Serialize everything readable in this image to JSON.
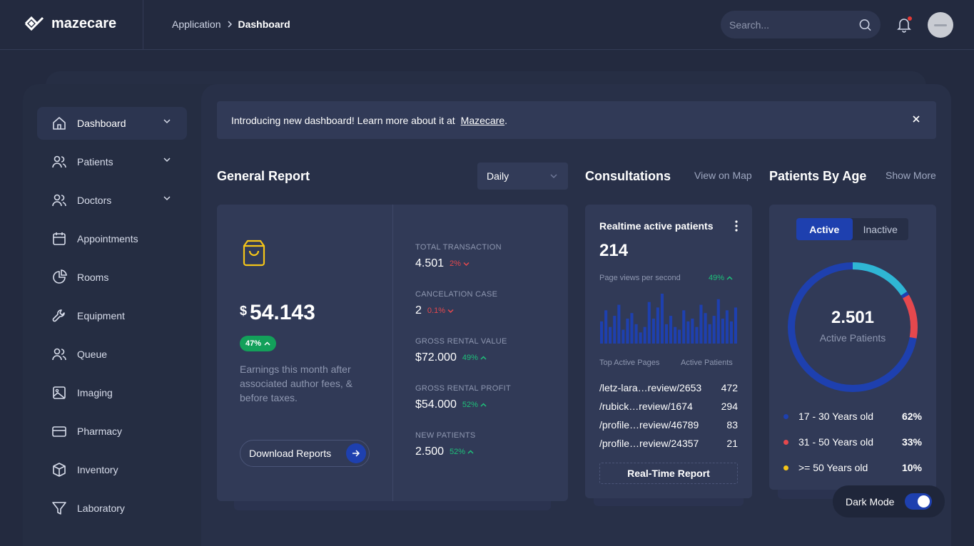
{
  "app": {
    "name": "mazecare"
  },
  "breadcrumb": {
    "parent": "Application",
    "current": "Dashboard"
  },
  "search": {
    "placeholder": "Search..."
  },
  "sidebar": {
    "items": [
      {
        "label": "Dashboard",
        "icon": "home-icon",
        "active": true,
        "expandable": true
      },
      {
        "label": "Patients",
        "icon": "users-icon",
        "expandable": true
      },
      {
        "label": "Doctors",
        "icon": "users-icon",
        "expandable": true
      },
      {
        "label": "Appointments",
        "icon": "calendar-icon"
      },
      {
        "label": "Rooms",
        "icon": "pie-icon"
      },
      {
        "label": "Equipment",
        "icon": "wrench-icon"
      },
      {
        "label": "Queue",
        "icon": "users-icon"
      },
      {
        "label": "Imaging",
        "icon": "image-icon"
      },
      {
        "label": "Pharmacy",
        "icon": "credit-card-icon"
      },
      {
        "label": "Inventory",
        "icon": "box-icon"
      },
      {
        "label": "Laboratory",
        "icon": "filter-icon"
      }
    ]
  },
  "banner": {
    "text": "Introducing new dashboard! Learn more about it at",
    "link": "Mazecare",
    "suffix": "."
  },
  "general_report": {
    "title": "General Report",
    "period": "Daily",
    "currency": "$",
    "earnings": "54.143",
    "earnings_change": "47%",
    "description": "Earnings this month after associated author fees, & before taxes.",
    "download_label": "Download Reports",
    "stats": [
      {
        "label": "TOTAL TRANSACTION",
        "value": "4.501",
        "change": "2%",
        "direction": "down"
      },
      {
        "label": "CANCELATION CASE",
        "value": "2",
        "change": "0.1%",
        "direction": "down"
      },
      {
        "label": "GROSS RENTAL VALUE",
        "value": "$72.000",
        "change": "49%",
        "direction": "up"
      },
      {
        "label": "GROSS RENTAL PROFIT",
        "value": "$54.000",
        "change": "52%",
        "direction": "up"
      },
      {
        "label": "NEW PATIENTS",
        "value": "2.500",
        "change": "52%",
        "direction": "up"
      }
    ]
  },
  "consultations": {
    "title": "Consultations",
    "link": "View on Map",
    "card_title": "Realtime active patients",
    "active_count": "214",
    "sub_label": "Page views per second",
    "sub_change": "49%",
    "col_pages": "Top Active Pages",
    "col_patients": "Active Patients",
    "pages": [
      {
        "path": "/letz-lara…review/2653",
        "count": "472"
      },
      {
        "path": "/rubick…review/1674",
        "count": "294"
      },
      {
        "path": "/profile…review/46789",
        "count": "83"
      },
      {
        "path": "/profile…review/24357",
        "count": "21"
      }
    ],
    "report_button": "Real-Time Report"
  },
  "patients_by_age": {
    "title": "Patients By Age",
    "link": "Show More",
    "tabs": [
      "Active",
      "Inactive"
    ],
    "total": "2.501",
    "total_label": "Active Patients",
    "legend": [
      {
        "label": "17 - 30 Years old",
        "pct": "62%",
        "color": "#1e40af"
      },
      {
        "label": "31 - 50 Years old",
        "pct": "33%",
        "color": "#e5484d"
      },
      {
        "label": ">= 50 Years old",
        "pct": "10%",
        "color": "#f5c518"
      }
    ]
  },
  "chart_data": {
    "type": "bar",
    "values": [
      8,
      12,
      6,
      10,
      14,
      5,
      9,
      11,
      7,
      4,
      6,
      15,
      9,
      13,
      18,
      7,
      10,
      6,
      5,
      12,
      8,
      9,
      6,
      14,
      11,
      7,
      10,
      16,
      9,
      12,
      8,
      13
    ]
  },
  "dark_mode": {
    "label": "Dark Mode",
    "on": true
  },
  "colors": {
    "accent": "#1e40af",
    "positive": "#1ec17a",
    "negative": "#e5484d",
    "warning": "#f5c518",
    "teal": "#2fb6d4"
  }
}
